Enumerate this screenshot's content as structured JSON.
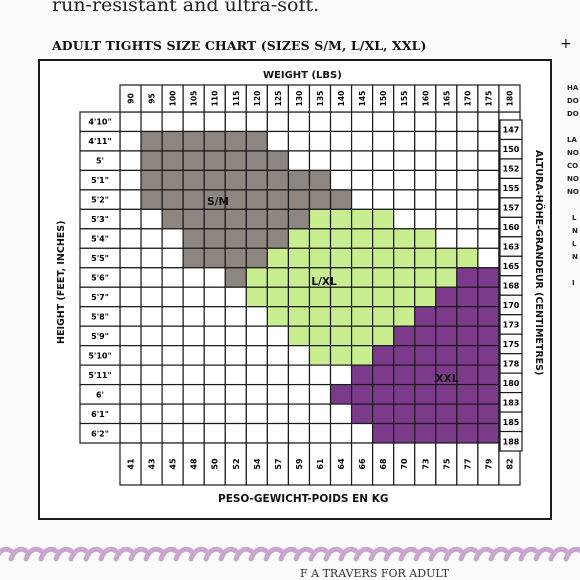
{
  "header_fragment": "run-resistant and ultra-soft.",
  "chart_title": "ADULT TIGHTS SIZE CHART (SIZES S/M, L/XL, XXL)",
  "top_axis_label": "WEIGHT (LBS)",
  "bottom_axis_label": "PESO-GEWICHT-POIDS EN KG",
  "left_axis_label": "HEIGHT (FEET, INCHES)",
  "right_axis_label": "ALTURA-HÖHE-GRANDEUR (CENTIMETRES)",
  "right_side_fragments": [
    "HA",
    "DO",
    "DO",
    "LA",
    "NO",
    "CO",
    "NO",
    "NO",
    "L",
    "N",
    "L",
    "N",
    "I"
  ],
  "chart_data": {
    "type": "table",
    "weights_lbs": [
      "90",
      "95",
      "100",
      "105",
      "110",
      "115",
      "120",
      "125",
      "130",
      "135",
      "140",
      "145",
      "150",
      "155",
      "160",
      "165",
      "170",
      "175",
      "180"
    ],
    "weights_kg": [
      "41",
      "43",
      "45",
      "48",
      "50",
      "52",
      "54",
      "57",
      "59",
      "61",
      "64",
      "66",
      "68",
      "70",
      "73",
      "75",
      "77",
      "79",
      "82"
    ],
    "heights_ft": [
      "4'10\"",
      "4'11\"",
      "5'",
      "5'1\"",
      "5'2\"",
      "5'3\"",
      "5'4\"",
      "5'5\"",
      "5'6\"",
      "5'7\"",
      "5'8\"",
      "5'9\"",
      "5'10\"",
      "5'11\"",
      "6'",
      "6'1\"",
      "6'2\""
    ],
    "heights_cm": [
      "147",
      "150",
      "152",
      "155",
      "157",
      "160",
      "163",
      "165",
      "168",
      "170",
      "173",
      "175",
      "178",
      "180",
      "183",
      "185",
      "188"
    ],
    "size_labels": {
      "SM": "S/M",
      "LXL": "L/XL",
      "XXL": "XXL"
    },
    "colors": {
      "SM": "#8c8580",
      "LXL": "#c9ee8f",
      "XXL": "#7b3a8a",
      "empty": "#ffffff",
      "grid": "#1a1a1a"
    },
    "rows": [
      "0000000000000000000",
      "0111111000000000000",
      "0111111100000000000",
      "0111111111000000000",
      "0111111111100000000",
      "0011111112222000000",
      "0001111122222220000",
      "0001111222222222200",
      "0000012222222222333",
      "0000002222222223333",
      "0000000222222233333",
      "0000000022222333333",
      "0000000002223333333",
      "0000000000033333333",
      "0000000000333333333",
      "0000000000033333333",
      "0000000000003333333"
    ]
  },
  "rope_color": "#c9a6cf",
  "bottom_fragment": "F A TRAVERS FOR ADULT"
}
